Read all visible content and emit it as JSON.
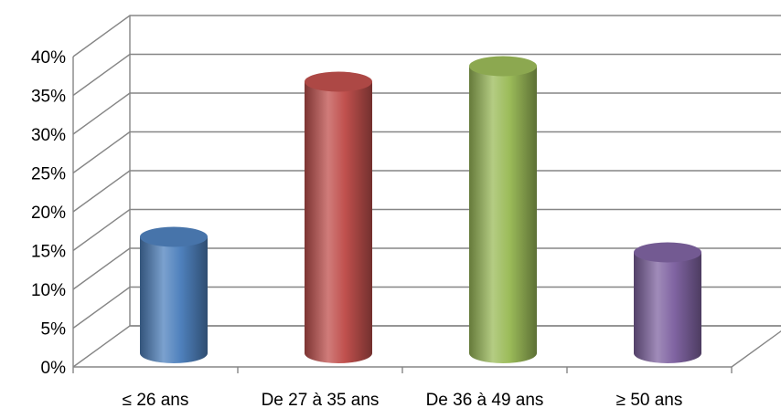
{
  "chart_data": {
    "type": "bar",
    "style": "3d-cylinder",
    "categories": [
      "≤  26 ans",
      "De 27 à 35 ans",
      "De 36 à 49 ans",
      "≥ 50 ans"
    ],
    "values": [
      0.15,
      0.35,
      0.37,
      0.13
    ],
    "colors": [
      "#4F81BD",
      "#C0504D",
      "#9BBB59",
      "#8064A2"
    ],
    "ylim": [
      0,
      0.4
    ],
    "yticks": [
      "0%",
      "5%",
      "10%",
      "15%",
      "20%",
      "25%",
      "30%",
      "35%",
      "40%"
    ],
    "grid": true,
    "legend": "none",
    "title": "",
    "xlabel": "",
    "ylabel": ""
  }
}
